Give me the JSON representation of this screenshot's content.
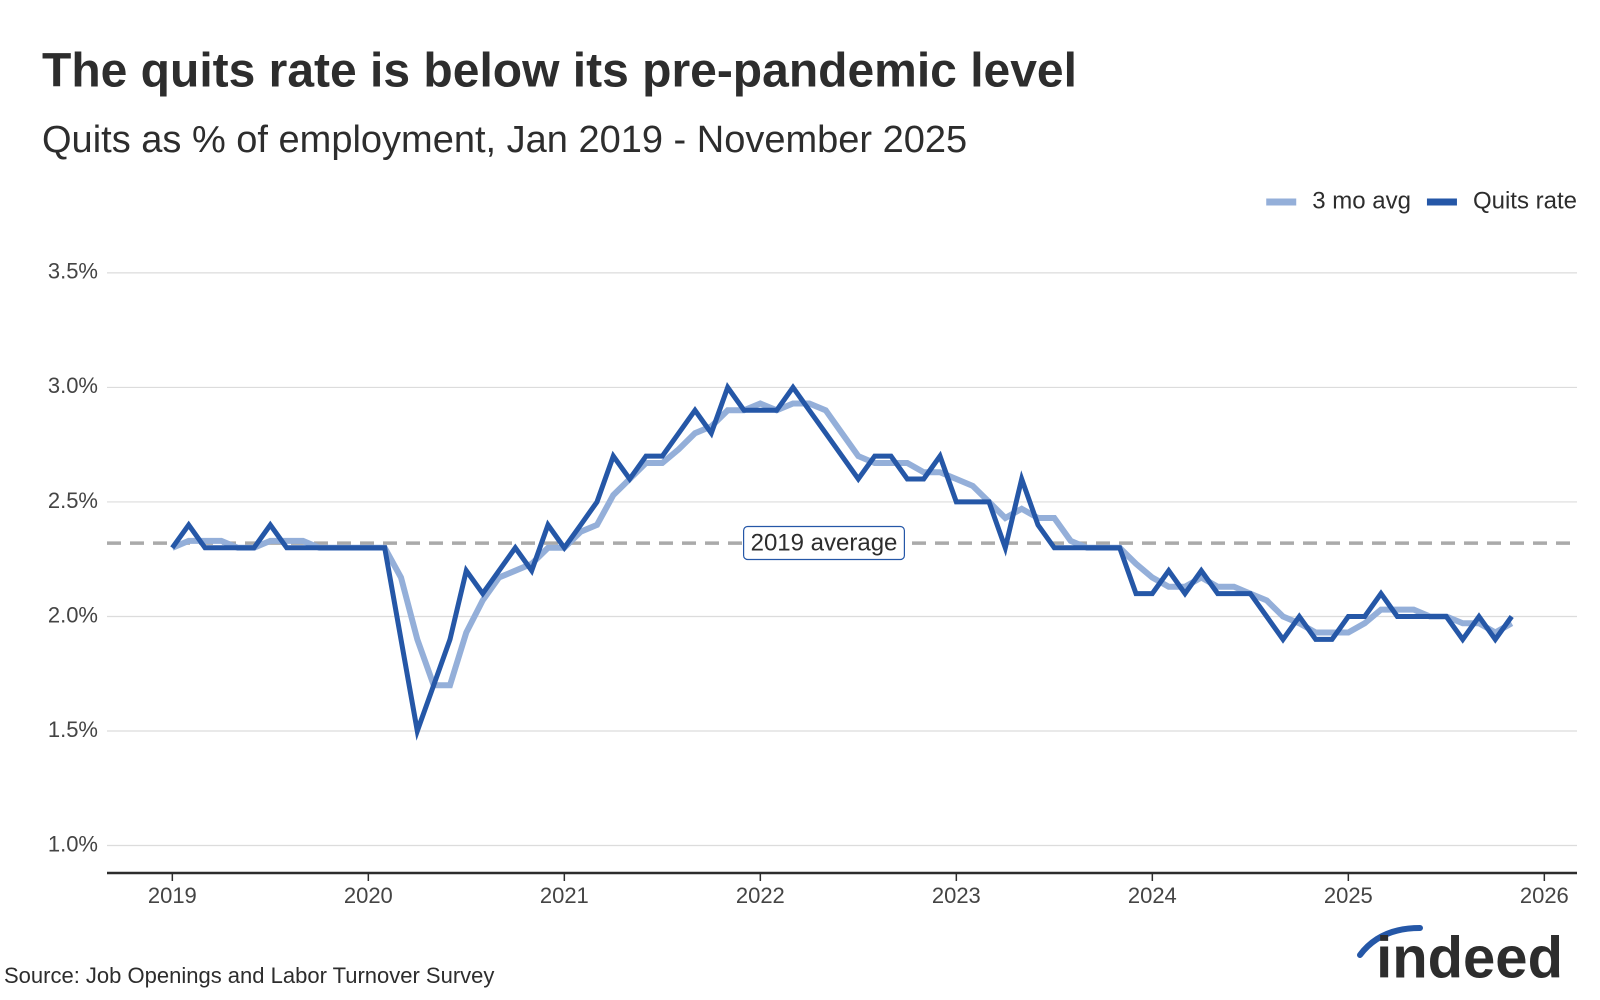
{
  "chart_data": {
    "type": "line",
    "title": "The quits rate is below its pre-pandemic level",
    "subtitle": "Quits as % of employment, Jan 2019 - November 2025",
    "source": "Source: Job Openings and Labor Turnover Survey",
    "logo": "indeed",
    "legend": "top-right",
    "grid": true,
    "x": [
      "2019-01",
      "2019-02",
      "2019-03",
      "2019-04",
      "2019-05",
      "2019-06",
      "2019-07",
      "2019-08",
      "2019-09",
      "2019-10",
      "2019-11",
      "2019-12",
      "2020-01",
      "2020-02",
      "2020-03",
      "2020-04",
      "2020-05",
      "2020-06",
      "2020-07",
      "2020-08",
      "2020-09",
      "2020-10",
      "2020-11",
      "2020-12",
      "2021-01",
      "2021-02",
      "2021-03",
      "2021-04",
      "2021-05",
      "2021-06",
      "2021-07",
      "2021-08",
      "2021-09",
      "2021-10",
      "2021-11",
      "2021-12",
      "2022-01",
      "2022-02",
      "2022-03",
      "2022-04",
      "2022-05",
      "2022-06",
      "2022-07",
      "2022-08",
      "2022-09",
      "2022-10",
      "2022-11",
      "2022-12",
      "2023-01",
      "2023-02",
      "2023-03",
      "2023-04",
      "2023-05",
      "2023-06",
      "2023-07",
      "2023-08",
      "2023-09",
      "2023-10",
      "2023-11",
      "2023-12",
      "2024-01",
      "2024-02",
      "2024-03",
      "2024-04",
      "2024-05",
      "2024-06",
      "2024-07",
      "2024-08",
      "2024-09",
      "2024-10",
      "2024-11",
      "2024-12",
      "2025-01",
      "2025-02",
      "2025-03",
      "2025-04",
      "2025-05",
      "2025-06",
      "2025-07",
      "2025-08",
      "2025-09",
      "2025-10",
      "2025-11"
    ],
    "series": [
      {
        "name": "3 mo avg",
        "color": "#94afd9",
        "values": [
          2.3,
          2.33,
          2.33,
          2.33,
          2.3,
          2.3,
          2.33,
          2.33,
          2.33,
          2.3,
          2.3,
          2.3,
          2.3,
          2.3,
          2.17,
          1.9,
          1.7,
          1.7,
          1.93,
          2.07,
          2.17,
          2.2,
          2.23,
          2.3,
          2.3,
          2.37,
          2.4,
          2.53,
          2.6,
          2.67,
          2.67,
          2.73,
          2.8,
          2.83,
          2.9,
          2.9,
          2.93,
          2.9,
          2.93,
          2.93,
          2.9,
          2.8,
          2.7,
          2.67,
          2.67,
          2.67,
          2.63,
          2.63,
          2.6,
          2.57,
          2.5,
          2.43,
          2.47,
          2.43,
          2.43,
          2.33,
          2.3,
          2.3,
          2.3,
          2.23,
          2.17,
          2.13,
          2.13,
          2.17,
          2.13,
          2.13,
          2.1,
          2.07,
          2.0,
          1.97,
          1.93,
          1.93,
          1.93,
          1.97,
          2.03,
          2.03,
          2.03,
          2.0,
          2.0,
          1.97,
          1.97,
          1.93,
          1.97
        ]
      },
      {
        "name": "Quits rate",
        "color": "#2557a7",
        "values": [
          2.3,
          2.4,
          2.3,
          2.3,
          2.3,
          2.3,
          2.4,
          2.3,
          2.3,
          2.3,
          2.3,
          2.3,
          2.3,
          2.3,
          1.9,
          1.5,
          1.7,
          1.9,
          2.2,
          2.1,
          2.2,
          2.3,
          2.2,
          2.4,
          2.3,
          2.4,
          2.5,
          2.7,
          2.6,
          2.7,
          2.7,
          2.8,
          2.9,
          2.8,
          3.0,
          2.9,
          2.9,
          2.9,
          3.0,
          2.9,
          2.8,
          2.7,
          2.6,
          2.7,
          2.7,
          2.6,
          2.6,
          2.7,
          2.5,
          2.5,
          2.5,
          2.3,
          2.6,
          2.4,
          2.3,
          2.3,
          2.3,
          2.3,
          2.3,
          2.1,
          2.1,
          2.2,
          2.1,
          2.2,
          2.1,
          2.1,
          2.1,
          2.0,
          1.9,
          2.0,
          1.9,
          1.9,
          2.0,
          2.0,
          2.1,
          2.0,
          2.0,
          2.0,
          2.0,
          1.9,
          2.0,
          1.9,
          2.0
        ]
      }
    ],
    "reference": {
      "value": 2.32,
      "label": "2019 average",
      "color": "#aaaaaa"
    },
    "xlim": [
      "2018-09",
      "2026-03"
    ],
    "xticks": [
      2019,
      2020,
      2021,
      2022,
      2023,
      2024,
      2025,
      2026
    ],
    "ylim": [
      0.88,
      3.6
    ],
    "yticks": [
      {
        "value": 1.0,
        "label": "1.0%"
      },
      {
        "value": 1.5,
        "label": "1.5%"
      },
      {
        "value": 2.0,
        "label": "2.0%"
      },
      {
        "value": 2.5,
        "label": "2.5%"
      },
      {
        "value": 3.0,
        "label": "3.0%"
      },
      {
        "value": 3.5,
        "label": "3.5%"
      }
    ]
  }
}
